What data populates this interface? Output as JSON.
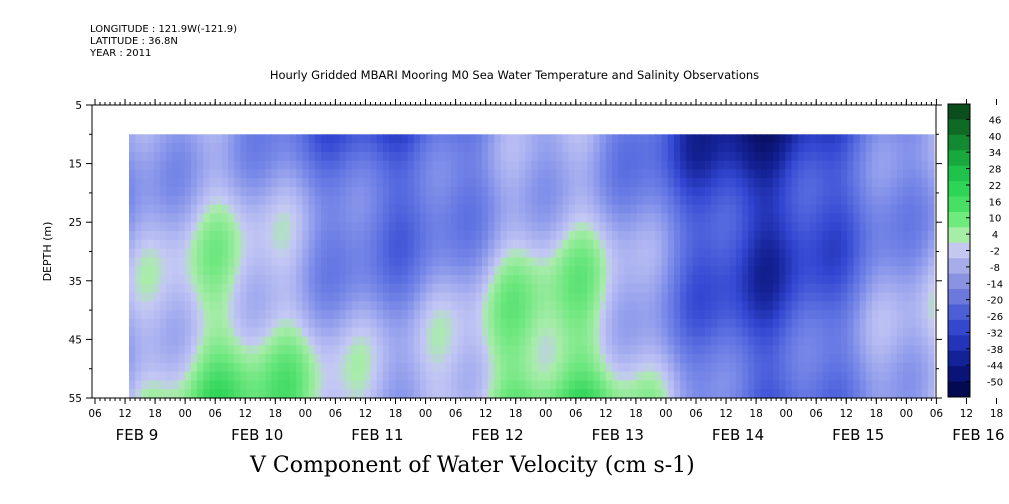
{
  "header": {
    "longitude": "LONGITUDE : 121.9W(-121.9)",
    "latitude": "LATITUDE : 36.8N",
    "year": "YEAR : 2011"
  },
  "chart_data": {
    "type": "heatmap",
    "title": "Hourly Gridded MBARI Mooring M0 Sea Water Temperature and Salinity Observations",
    "xlabel": "V Component of Water Velocity (cm s-1)",
    "ylabel": "DEPTH (m)",
    "y_range": [
      5,
      55
    ],
    "y_inverted": true,
    "y_ticks": [
      "5",
      "15",
      "25",
      "35",
      "45",
      "55"
    ],
    "x_hour_ticks": [
      "06",
      "12",
      "18",
      "00",
      "06",
      "12",
      "18",
      "00",
      "06",
      "12",
      "18",
      "00",
      "06",
      "12",
      "18",
      "00",
      "06",
      "12",
      "18",
      "00",
      "06",
      "12",
      "18",
      "00",
      "06",
      "12",
      "18",
      "00",
      "06",
      "12",
      "18",
      "00"
    ],
    "x_day_labels": [
      "FEB  9",
      "FEB 10",
      "FEB 11",
      "FEB 12",
      "FEB 13",
      "FEB 14",
      "FEB 15",
      "FEB 16"
    ],
    "data_depth_range": [
      10,
      55
    ],
    "colorbar": {
      "labels": [
        "46",
        "40",
        "34",
        "28",
        "22",
        "16",
        "10",
        "4",
        "-2",
        "-8",
        "-14",
        "-20",
        "-26",
        "-32",
        "-38",
        "-44",
        "-50"
      ],
      "colors": [
        "#0b4d1c",
        "#0f6a26",
        "#138a32",
        "#18a83e",
        "#1fc24a",
        "#2dd456",
        "#47e064",
        "#6fea7c",
        "#a6eea6",
        "#c4c8f0",
        "#a7ade8",
        "#8a92e2",
        "#6b78dc",
        "#4c5fd6",
        "#3547cc",
        "#2334b8",
        "#14229a",
        "#0a1478",
        "#040a50"
      ],
      "range": [
        -50,
        50
      ]
    },
    "profile": {
      "columns_left_to_right": "fixed hourly time samples from ~FEB 9 12:00 to FEB 16 06:00",
      "pattern": "blue (negative, -20 to -35) dominates surface and the first half; green bands (+5 to +20) appear at depth increasingly toward FEB 13-16"
    }
  }
}
